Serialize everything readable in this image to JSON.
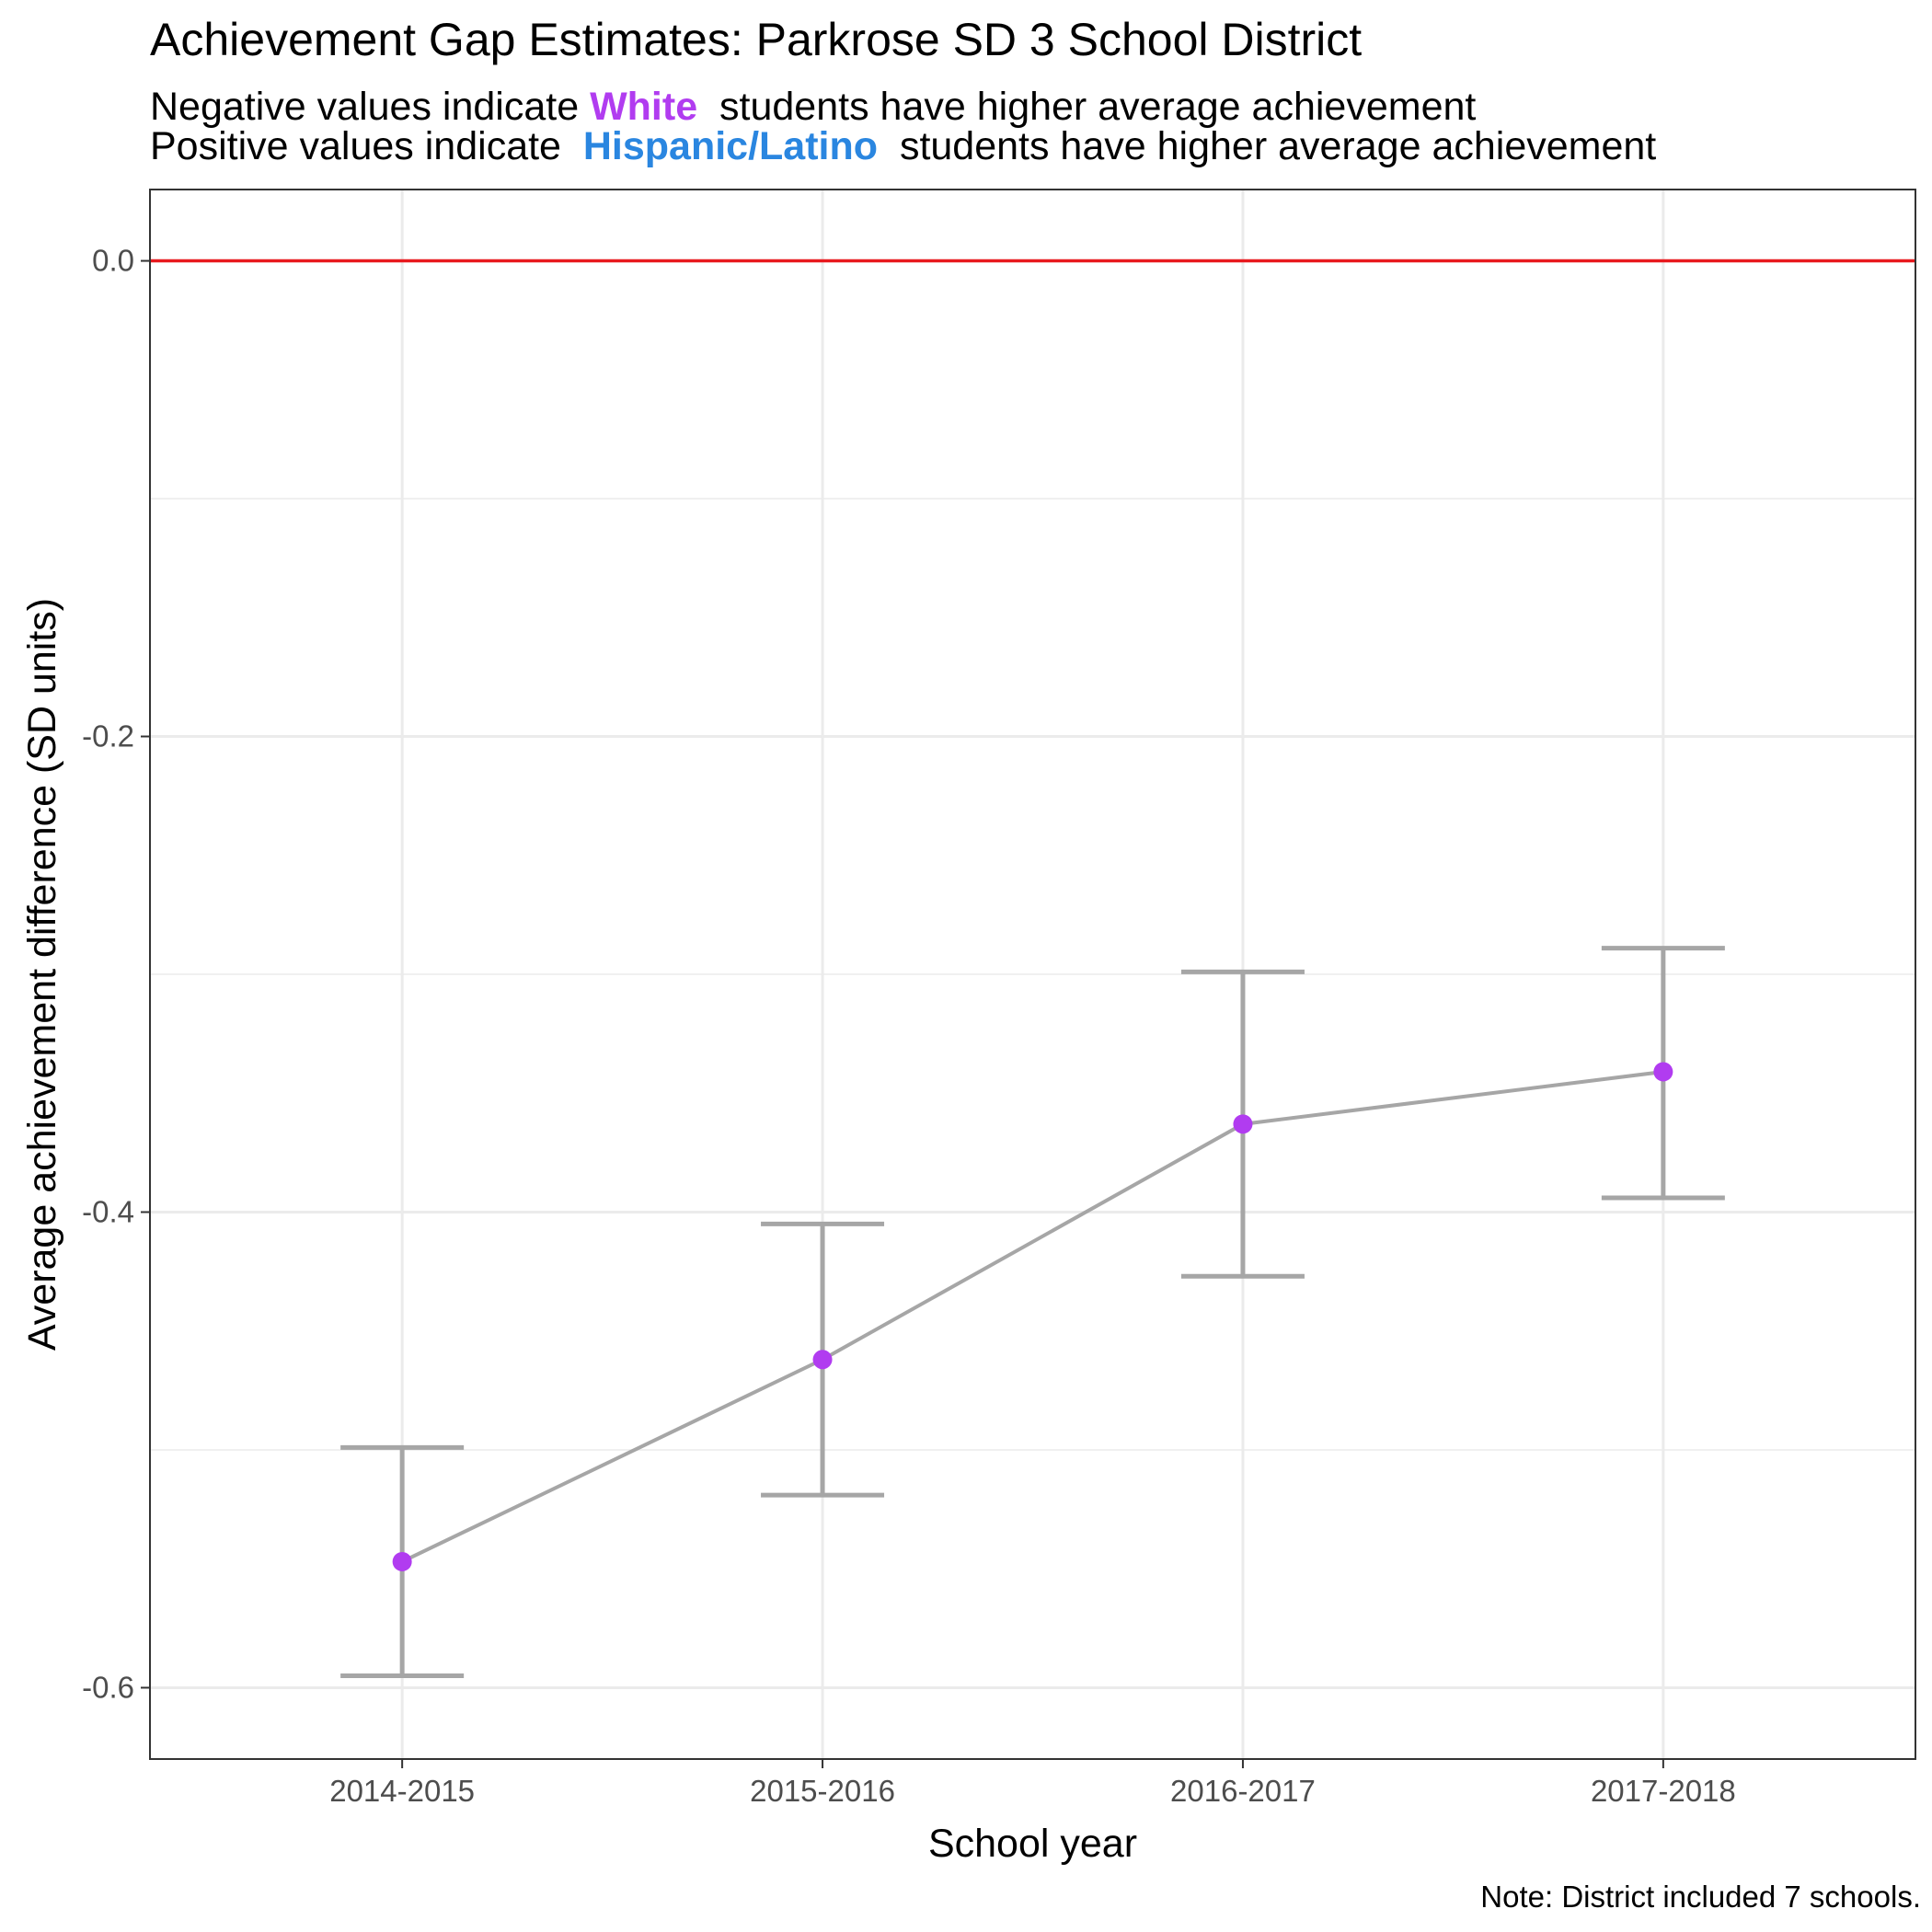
{
  "header": {
    "title": "Achievement Gap Estimates: Parkrose SD 3 School District",
    "subtitle_line1": {
      "prefix": "Negative values indicate",
      "highlight": "White",
      "suffix": "students have higher average achievement"
    },
    "subtitle_line2": {
      "prefix": "Positive values indicate",
      "highlight": "Hispanic/Latino",
      "suffix": "students have higher average achievement"
    }
  },
  "note": "Note: District included 7 schools.",
  "colors": {
    "white_highlight": "#B13CF0",
    "hispanic_highlight": "#2A86E0",
    "point": "#B13CF0",
    "line": "#A6A6A6",
    "errorbar": "#A6A6A6",
    "zero_line": "#E8191E",
    "grid": "#EBEBEB"
  },
  "chart_data": {
    "type": "line",
    "title": "Achievement Gap Estimates: Parkrose SD 3 School District",
    "xlabel": "School year",
    "ylabel": "Average achievement difference (SD units)",
    "categories": [
      "2014-2015",
      "2015-2016",
      "2016-2017",
      "2017-2018"
    ],
    "series": [
      {
        "values": [
          -0.547,
          -0.462,
          -0.363,
          -0.341
        ],
        "lower": [
          -0.595,
          -0.519,
          -0.427,
          -0.394
        ],
        "upper": [
          -0.499,
          -0.405,
          -0.299,
          -0.289
        ]
      }
    ],
    "ylim": [
      -0.63,
      0.03
    ],
    "yticks": [
      0.0,
      -0.2,
      -0.4,
      -0.6
    ],
    "ytick_labels": [
      "0.0",
      "-0.2",
      "-0.4",
      "-0.6"
    ],
    "reference_line": 0.0,
    "grid": true,
    "legend": "none"
  }
}
